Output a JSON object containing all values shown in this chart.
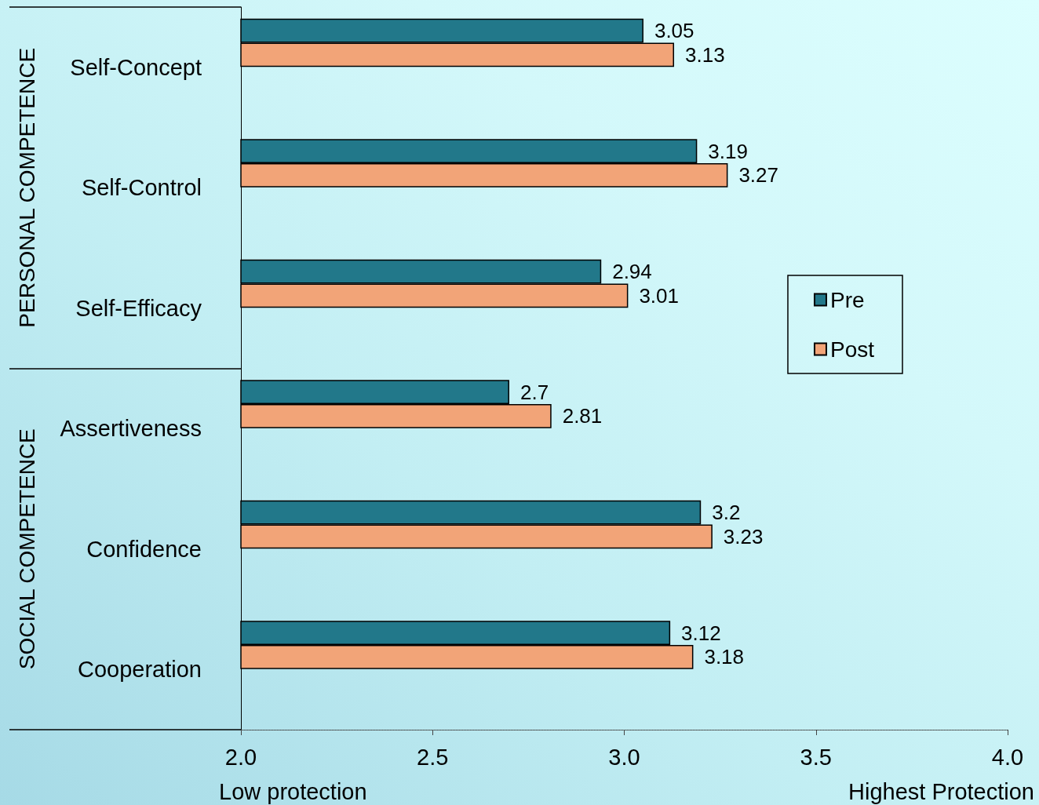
{
  "chart_data": {
    "type": "bar",
    "orientation": "horizontal",
    "categories": [
      "Self-Concept",
      "Self-Control",
      "Self-Efficacy",
      "Assertiveness",
      "Confidence",
      "Cooperation"
    ],
    "series": [
      {
        "name": "Pre",
        "color": "#22788a",
        "values": [
          3.05,
          3.19,
          2.94,
          2.7,
          3.2,
          3.12
        ]
      },
      {
        "name": "Post",
        "color": "#f2a478",
        "values": [
          3.13,
          3.27,
          3.01,
          2.81,
          3.23,
          3.18
        ]
      }
    ],
    "xlim": [
      2,
      4
    ],
    "xticks": [
      {
        "value": 2,
        "label": "2.0"
      },
      {
        "value": 2.5,
        "label": "2.5"
      },
      {
        "value": 3,
        "label": "3.0"
      },
      {
        "value": 3.5,
        "label": "3.5"
      },
      {
        "value": 4,
        "label": "4.0"
      }
    ],
    "data_labels": true,
    "grid": false,
    "legend": "right",
    "annotations": [
      "PERSONAL COMPETENCE",
      "SOCIAL COMPETENCE",
      "Low protection",
      "Highest Protection"
    ]
  }
}
